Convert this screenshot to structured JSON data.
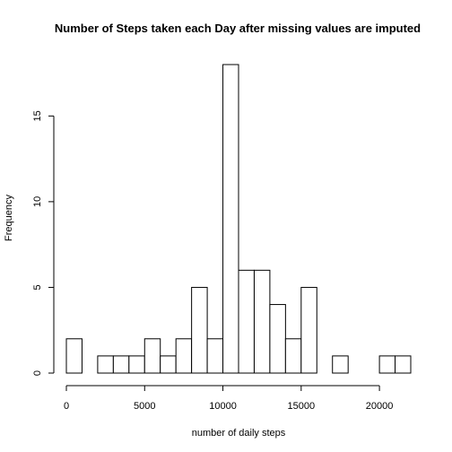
{
  "chart_data": {
    "type": "bar",
    "title": "Number of Steps taken each Day after missing values are imputed",
    "xlabel": "number of daily steps",
    "ylabel": "Frequency",
    "bin_width": 1000,
    "bins": [
      {
        "x0": 0,
        "x1": 1000,
        "count": 2
      },
      {
        "x0": 1000,
        "x1": 2000,
        "count": 0
      },
      {
        "x0": 2000,
        "x1": 3000,
        "count": 1
      },
      {
        "x0": 3000,
        "x1": 4000,
        "count": 1
      },
      {
        "x0": 4000,
        "x1": 5000,
        "count": 1
      },
      {
        "x0": 5000,
        "x1": 6000,
        "count": 2
      },
      {
        "x0": 6000,
        "x1": 7000,
        "count": 1
      },
      {
        "x0": 7000,
        "x1": 8000,
        "count": 2
      },
      {
        "x0": 8000,
        "x1": 9000,
        "count": 5
      },
      {
        "x0": 9000,
        "x1": 10000,
        "count": 2
      },
      {
        "x0": 10000,
        "x1": 11000,
        "count": 18
      },
      {
        "x0": 11000,
        "x1": 12000,
        "count": 6
      },
      {
        "x0": 12000,
        "x1": 13000,
        "count": 6
      },
      {
        "x0": 13000,
        "x1": 14000,
        "count": 4
      },
      {
        "x0": 14000,
        "x1": 15000,
        "count": 2
      },
      {
        "x0": 15000,
        "x1": 16000,
        "count": 5
      },
      {
        "x0": 16000,
        "x1": 17000,
        "count": 0
      },
      {
        "x0": 17000,
        "x1": 18000,
        "count": 1
      },
      {
        "x0": 18000,
        "x1": 19000,
        "count": 0
      },
      {
        "x0": 19000,
        "x1": 20000,
        "count": 0
      },
      {
        "x0": 20000,
        "x1": 21000,
        "count": 1
      },
      {
        "x0": 21000,
        "x1": 22000,
        "count": 1
      }
    ],
    "xlim": [
      0,
      22000
    ],
    "ylim": [
      0,
      18
    ],
    "x_ticks": [
      0,
      5000,
      10000,
      15000,
      20000
    ],
    "y_ticks": [
      0,
      5,
      10,
      15
    ],
    "grid": false,
    "legend": "none"
  }
}
